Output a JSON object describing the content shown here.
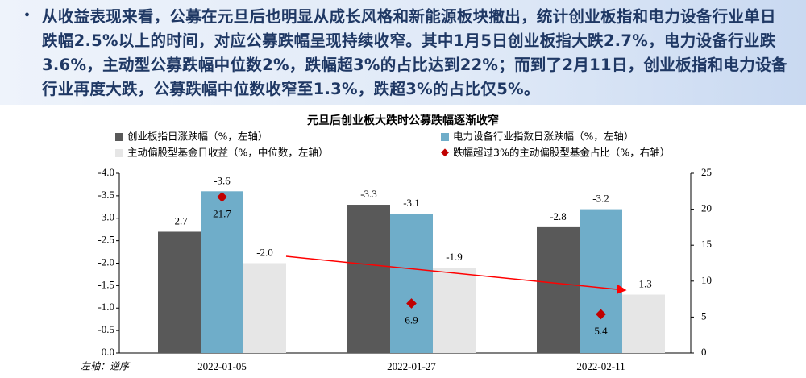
{
  "header": {
    "text": "从收益表现来看，公募在元旦后也明显从成长风格和新能源板块撤出，统计创业板指和电力设备行业单日跌幅2.5%以上的时间，对应公募跌幅呈现持续收窄。其中1月5日创业板指大跌2.7%，电力设备行业跌3.6%，主动型公募跌幅中位数2%，跌幅超3%的占比达到22%；而到了2月11日，创业板指和电力设备行业再度大跌，公募跌幅中位数收窄至1.3%，跌超3%的占比仅5%。"
  },
  "chart_data": {
    "type": "bar",
    "title": "元旦后创业板大跌时公募跌幅逐渐收窄",
    "annotation": "左轴：逆序",
    "categories": [
      "2022-01-05",
      "2022-01-27",
      "2022-02-11"
    ],
    "series": [
      {
        "name": "创业板指日涨跌幅（%，左轴）",
        "color": "#595959",
        "values": [
          -2.7,
          -3.3,
          -2.8
        ]
      },
      {
        "name": "电力设备行业指数日涨跌幅（%，左轴）",
        "color": "#6fadc9",
        "values": [
          -3.6,
          -3.1,
          -3.2
        ]
      },
      {
        "name": "主动偏股型基金日收益（%，中位数，左轴）",
        "color": "#e6e6e6",
        "values": [
          -2.0,
          -1.9,
          -1.3
        ],
        "value_labels": [
          "-2.0",
          "-1.9",
          "-1.3"
        ]
      },
      {
        "name": "跌幅超过3%的主动偏股型基金占比（%，右轴）",
        "color": "#c00000",
        "type": "scatter",
        "axis": "y2",
        "values": [
          21.7,
          6.9,
          5.4
        ]
      }
    ],
    "ylim": [
      0,
      -4.0
    ],
    "yticks": [
      {
        "value": -4.0,
        "label": "-4.0"
      },
      {
        "value": -3.5,
        "label": "-3.5"
      },
      {
        "value": -3.0,
        "label": "-3.0"
      },
      {
        "value": -2.5,
        "label": "-2.5"
      },
      {
        "value": -2.0,
        "label": "-2.0"
      },
      {
        "value": -1.5,
        "label": "-1.5"
      },
      {
        "value": -1.0,
        "label": "-1.0"
      },
      {
        "value": -0.5,
        "label": "-0.5"
      },
      {
        "value": 0,
        "label": "0.0"
      }
    ],
    "y2lim": [
      0,
      25
    ],
    "y2ticks": [
      0,
      5,
      10,
      15,
      20,
      25
    ]
  }
}
